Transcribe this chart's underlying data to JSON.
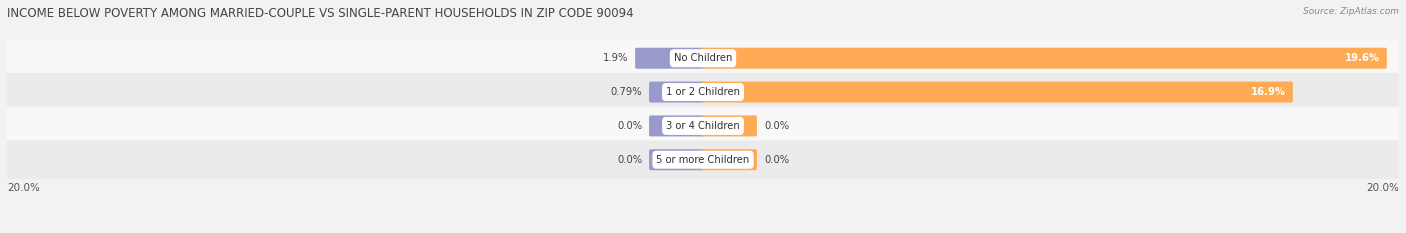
{
  "title": "INCOME BELOW POVERTY AMONG MARRIED-COUPLE VS SINGLE-PARENT HOUSEHOLDS IN ZIP CODE 90094",
  "source": "Source: ZipAtlas.com",
  "categories": [
    "No Children",
    "1 or 2 Children",
    "3 or 4 Children",
    "5 or more Children"
  ],
  "married_values": [
    1.9,
    0.79,
    0.0,
    0.0
  ],
  "single_values": [
    19.6,
    16.9,
    0.0,
    0.0
  ],
  "married_color": "#9999cc",
  "single_color": "#ffaa55",
  "married_label_color": "#9999cc",
  "single_label_color": "#ffaa55",
  "xlim": 20.0,
  "bg_color": "#f2f2f2",
  "row_colors_odd": "#f8f8f8",
  "row_colors_even": "#ebebeb",
  "title_fontsize": 8.5,
  "label_fontsize": 7.2,
  "value_fontsize": 7.2,
  "tick_fontsize": 7.5,
  "bar_height": 0.52,
  "min_bar_width": 1.5,
  "legend_fontsize": 7.5
}
